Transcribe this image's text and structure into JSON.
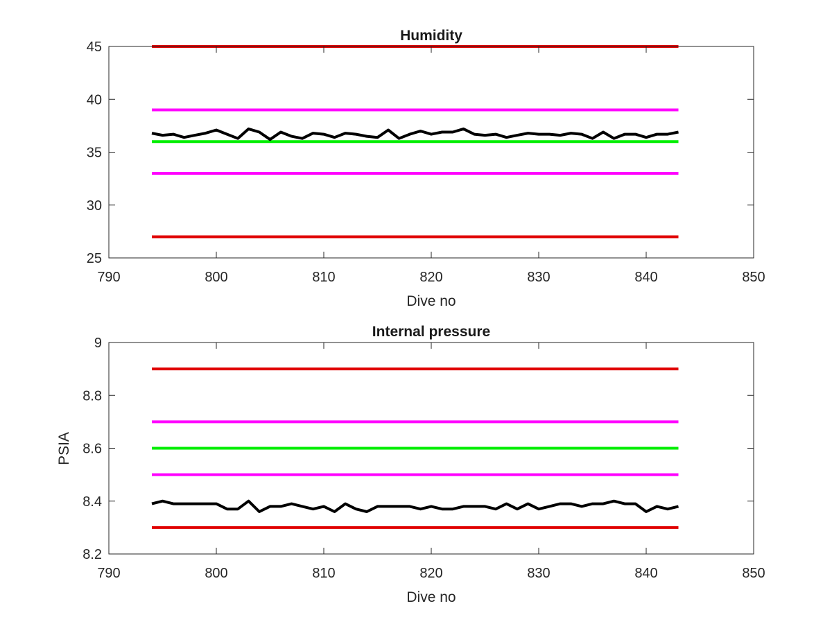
{
  "chart_data": [
    {
      "type": "line",
      "title": "Humidity",
      "xlabel": "Dive no",
      "ylabel": "",
      "xlim": [
        790,
        850
      ],
      "ylim": [
        25,
        45
      ],
      "xticks": [
        "790",
        "800",
        "810",
        "820",
        "830",
        "840",
        "850"
      ],
      "yticks": [
        "25",
        "30",
        "35",
        "40",
        "45"
      ],
      "grid": false,
      "series": [
        {
          "role": "limit",
          "color": "#e00000",
          "x": [
            794,
            843
          ],
          "values": [
            45,
            45
          ]
        },
        {
          "role": "limit",
          "color": "#ff00ff",
          "x": [
            794,
            843
          ],
          "values": [
            39,
            39
          ]
        },
        {
          "role": "limit",
          "color": "#00ee00",
          "x": [
            794,
            843
          ],
          "values": [
            36,
            36
          ]
        },
        {
          "role": "limit",
          "color": "#ff00ff",
          "x": [
            794,
            843
          ],
          "values": [
            33,
            33
          ]
        },
        {
          "role": "limit",
          "color": "#e00000",
          "x": [
            794,
            843
          ],
          "values": [
            27,
            27
          ]
        },
        {
          "role": "measured",
          "color": "#000000",
          "x": [
            794,
            795,
            796,
            797,
            798,
            799,
            800,
            801,
            802,
            803,
            804,
            805,
            806,
            807,
            808,
            809,
            810,
            811,
            812,
            813,
            814,
            815,
            816,
            817,
            818,
            819,
            820,
            821,
            822,
            823,
            824,
            825,
            826,
            827,
            828,
            829,
            830,
            831,
            832,
            833,
            834,
            835,
            836,
            837,
            838,
            839,
            840,
            841,
            842,
            843
          ],
          "values": [
            36.8,
            36.6,
            36.7,
            36.4,
            36.6,
            36.8,
            37.1,
            36.7,
            36.3,
            37.2,
            36.9,
            36.2,
            36.9,
            36.5,
            36.3,
            36.8,
            36.7,
            36.4,
            36.8,
            36.7,
            36.5,
            36.4,
            37.1,
            36.3,
            36.7,
            37.0,
            36.7,
            36.9,
            36.9,
            37.2,
            36.7,
            36.6,
            36.7,
            36.4,
            36.6,
            36.8,
            36.7,
            36.7,
            36.6,
            36.8,
            36.7,
            36.3,
            36.9,
            36.3,
            36.7,
            36.7,
            36.4,
            36.7,
            36.7,
            36.9
          ]
        }
      ]
    },
    {
      "type": "line",
      "title": "Internal pressure",
      "xlabel": "Dive no",
      "ylabel": "PSIA",
      "xlim": [
        790,
        850
      ],
      "ylim": [
        8.2,
        9
      ],
      "xticks": [
        "790",
        "800",
        "810",
        "820",
        "830",
        "840",
        "850"
      ],
      "yticks": [
        "8.2",
        "8.4",
        "8.6",
        "8.8",
        "9"
      ],
      "grid": false,
      "series": [
        {
          "role": "limit",
          "color": "#e00000",
          "x": [
            794,
            843
          ],
          "values": [
            8.9,
            8.9
          ]
        },
        {
          "role": "limit",
          "color": "#ff00ff",
          "x": [
            794,
            843
          ],
          "values": [
            8.7,
            8.7
          ]
        },
        {
          "role": "limit",
          "color": "#00ee00",
          "x": [
            794,
            843
          ],
          "values": [
            8.6,
            8.6
          ]
        },
        {
          "role": "limit",
          "color": "#ff00ff",
          "x": [
            794,
            843
          ],
          "values": [
            8.5,
            8.5
          ]
        },
        {
          "role": "limit",
          "color": "#e00000",
          "x": [
            794,
            843
          ],
          "values": [
            8.3,
            8.3
          ]
        },
        {
          "role": "measured",
          "color": "#000000",
          "x": [
            794,
            795,
            796,
            797,
            798,
            799,
            800,
            801,
            802,
            803,
            804,
            805,
            806,
            807,
            808,
            809,
            810,
            811,
            812,
            813,
            814,
            815,
            816,
            817,
            818,
            819,
            820,
            821,
            822,
            823,
            824,
            825,
            826,
            827,
            828,
            829,
            830,
            831,
            832,
            833,
            834,
            835,
            836,
            837,
            838,
            839,
            840,
            841,
            842,
            843
          ],
          "values": [
            8.39,
            8.4,
            8.39,
            8.39,
            8.39,
            8.39,
            8.39,
            8.37,
            8.37,
            8.4,
            8.36,
            8.38,
            8.38,
            8.39,
            8.38,
            8.37,
            8.38,
            8.36,
            8.39,
            8.37,
            8.36,
            8.38,
            8.38,
            8.38,
            8.38,
            8.37,
            8.38,
            8.37,
            8.37,
            8.38,
            8.38,
            8.38,
            8.37,
            8.39,
            8.37,
            8.39,
            8.37,
            8.38,
            8.39,
            8.39,
            8.38,
            8.39,
            8.39,
            8.4,
            8.39,
            8.39,
            8.36,
            8.38,
            8.37,
            8.38
          ]
        }
      ]
    }
  ]
}
